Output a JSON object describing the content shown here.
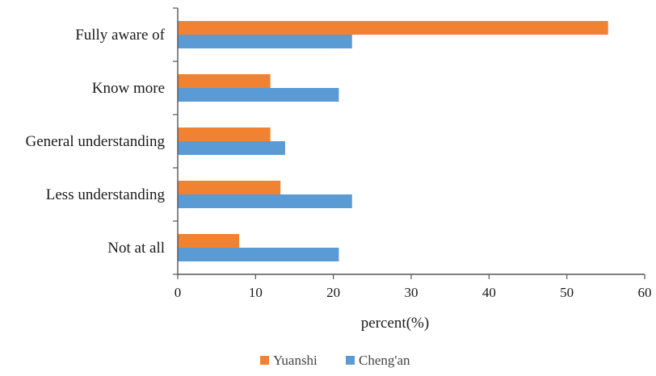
{
  "chart_data": {
    "type": "bar",
    "orientation": "horizontal",
    "categories": [
      "Fully aware of",
      "Know more",
      "General understanding",
      "Less understanding",
      "Not at all"
    ],
    "series": [
      {
        "name": "Yuanshi",
        "color": "#f08232",
        "values": [
          55.3,
          11.9,
          11.9,
          13.2,
          7.9
        ]
      },
      {
        "name": "Cheng'an",
        "color": "#5b9bd5",
        "values": [
          22.4,
          20.7,
          13.8,
          22.4,
          20.7
        ]
      }
    ],
    "xlabel": "percent(%)",
    "ylabel": "",
    "xlim": [
      0,
      60
    ],
    "xticks": [
      0,
      10,
      20,
      30,
      40,
      50,
      60
    ],
    "grid": false,
    "legend_position": "bottom"
  }
}
